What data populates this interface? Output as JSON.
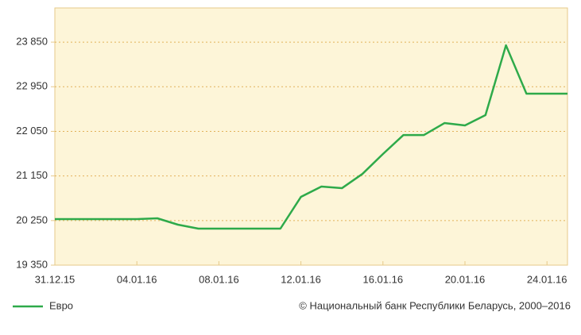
{
  "chart_data": {
    "type": "line",
    "categories": [
      "31.12.15",
      null,
      null,
      null,
      "04.01.16",
      null,
      null,
      null,
      "08.01.16",
      null,
      null,
      null,
      "12.01.16",
      null,
      null,
      null,
      "16.01.16",
      null,
      null,
      null,
      "20.01.16",
      null,
      null,
      null,
      "24.01.16",
      null
    ],
    "series": [
      {
        "name": "Евро",
        "color": "#2eaa4a",
        "values": [
          20280,
          20280,
          20280,
          20280,
          20280,
          20295,
          20167,
          20087,
          20087,
          20087,
          20087,
          20087,
          20727,
          20935,
          20903,
          21191,
          21592,
          21976,
          21976,
          22217,
          22169,
          22377,
          23786,
          22809,
          22809,
          22809
        ]
      }
    ],
    "ylim": [
      19350,
      24540
    ],
    "yticks": [
      {
        "value": 19350,
        "label": "19 350"
      },
      {
        "value": 20250,
        "label": "20 250"
      },
      {
        "value": 21150,
        "label": "21 150"
      },
      {
        "value": 22050,
        "label": "22 050"
      },
      {
        "value": 22950,
        "label": "22 950"
      },
      {
        "value": 23850,
        "label": "23 850"
      }
    ],
    "grid": true,
    "legend": "bottom-left",
    "caption": "© Национальный банк Республики Беларусь, 2000–2016"
  }
}
